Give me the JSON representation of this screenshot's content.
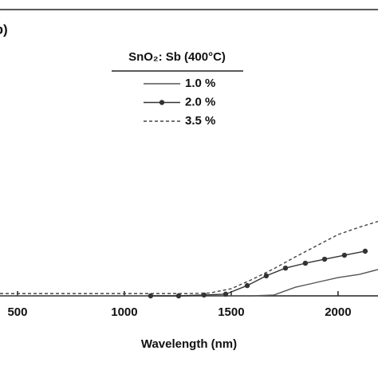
{
  "chart_data": {
    "type": "line",
    "panel_label": "(b)",
    "legend_title": "SnO₂: Sb (400°C)",
    "x_label": "Wavelength (nm)",
    "xlim": [
      418,
      2187
    ],
    "ylim": [
      0,
      100
    ],
    "xticks": [
      500,
      1000,
      1500,
      2000
    ],
    "series": [
      {
        "name": "1.0 %",
        "color": "#555555",
        "style": "solid",
        "markers": false,
        "x": [
          418,
          1000,
          1600,
          1700,
          1800,
          1900,
          2000,
          2100,
          2187
        ],
        "values": [
          0,
          0,
          0,
          0.3,
          3,
          4.7,
          6.4,
          7.5,
          9.2
        ]
      },
      {
        "name": "2.0 %",
        "color": "#333333",
        "style": "solid",
        "markers": true,
        "x": [
          1123,
          1254,
          1373,
          1474,
          1575,
          1664,
          1754,
          1847,
          1937,
          2030,
          2127
        ],
        "values": [
          0,
          0,
          0.3,
          0.6,
          3.6,
          7,
          9.7,
          11.4,
          12.8,
          14.2,
          15.6
        ]
      },
      {
        "name": "3.5 %",
        "color": "#444444",
        "style": "dashed",
        "markers": false,
        "x": [
          418,
          1300,
          1400,
          1500,
          1600,
          1700,
          1800,
          1900,
          2000,
          2100,
          2187
        ],
        "values": [
          0.8,
          0.8,
          1,
          2.5,
          5.8,
          9.5,
          13.6,
          17.5,
          21.4,
          24,
          26
        ]
      }
    ]
  }
}
